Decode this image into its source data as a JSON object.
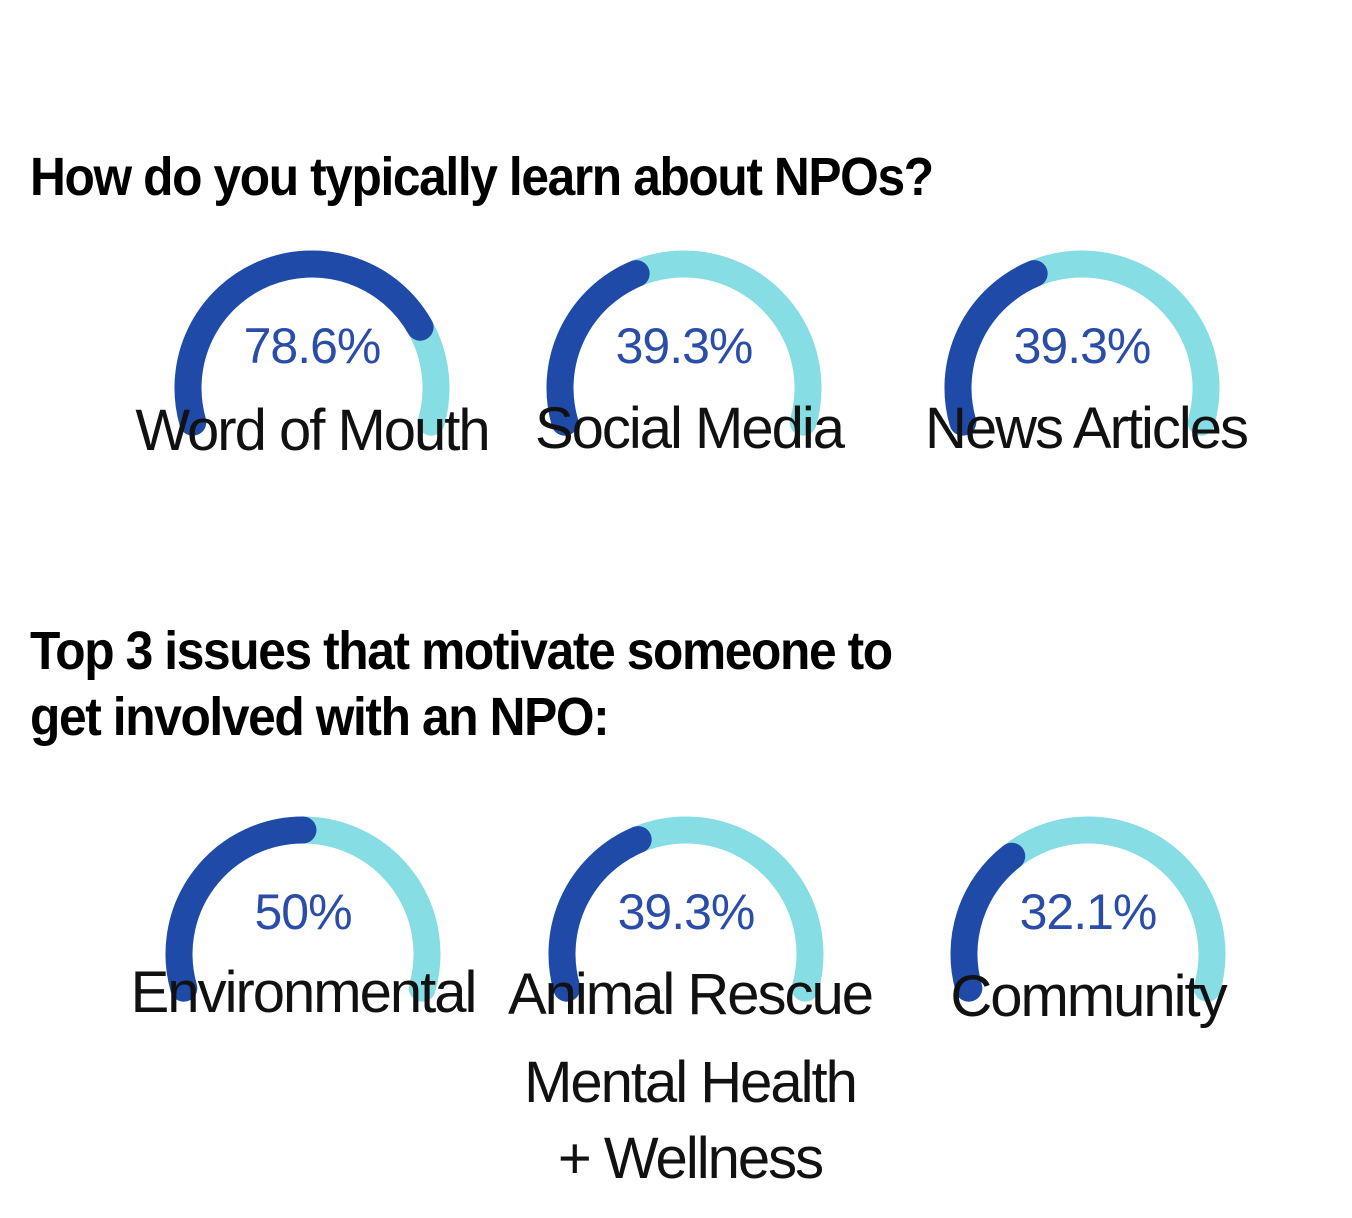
{
  "sections": [
    {
      "heading": "How do you typically learn about NPOs?",
      "gauges": [
        {
          "value": 78.6,
          "value_label": "78.6%",
          "label": "Word of Mouth"
        },
        {
          "value": 39.3,
          "value_label": "39.3%",
          "label": "Social Media"
        },
        {
          "value": 39.3,
          "value_label": "39.3%",
          "label": "News Articles"
        }
      ]
    },
    {
      "heading_lines": [
        "Top 3 issues that motivate someone to",
        "get involved with an NPO:"
      ],
      "gauges": [
        {
          "value": 50,
          "value_label": "50%",
          "label": "Environmental"
        },
        {
          "value": 39.3,
          "value_label": "39.3%",
          "label": "Animal Rescue",
          "extra_label_lines": [
            "Mental Health",
            "+ Wellness"
          ]
        },
        {
          "value": 32.1,
          "value_label": "32.1%",
          "label": "Community"
        }
      ]
    }
  ],
  "colors": {
    "fill": "#1f4aa8",
    "track": "#86dde3",
    "value_text": "#2a4da8"
  },
  "chart_data": [
    {
      "type": "gauge",
      "title": "How do you typically learn about NPOs?",
      "categories": [
        "Word of Mouth",
        "Social Media",
        "News Articles"
      ],
      "values": [
        78.6,
        39.3,
        39.3
      ],
      "ylim": [
        0,
        100
      ]
    },
    {
      "type": "gauge",
      "title": "Top 3 issues that motivate someone to get involved with an NPO:",
      "categories": [
        "Environmental",
        "Animal Rescue / Mental Health + Wellness",
        "Community"
      ],
      "values": [
        50,
        39.3,
        32.1
      ],
      "ylim": [
        0,
        100
      ]
    }
  ]
}
